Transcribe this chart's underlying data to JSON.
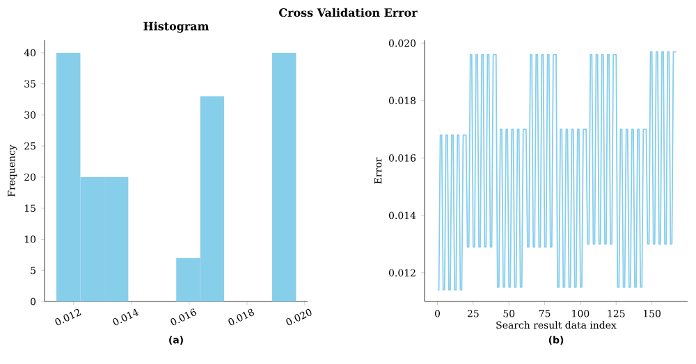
{
  "chart_data": [
    {
      "type": "histogram",
      "title": "Histogram",
      "ylabel": "Frequency",
      "color": "#87ceeb",
      "bins": [
        0.0114,
        0.01223,
        0.01306,
        0.01389,
        0.01472,
        0.01555,
        0.01638,
        0.01721,
        0.01804,
        0.01887,
        0.0197
      ],
      "values": [
        40,
        20,
        20,
        0,
        0,
        7,
        33,
        0,
        0,
        40
      ],
      "xlim": [
        0.01099,
        0.0201
      ],
      "xticks": [
        0.012,
        0.014,
        0.016,
        0.018,
        {
          "value": 0.02,
          "label": "0.020"
        }
      ],
      "ylim": [
        0,
        42
      ],
      "yticks": [
        0,
        5,
        10,
        15,
        20,
        25,
        30,
        35,
        40
      ],
      "annotations": [
        "Cross Validation Error",
        "(a)"
      ]
    },
    {
      "type": "line",
      "xlabel": "Search result data index",
      "ylabel": "Error",
      "color": "#87ceeb",
      "line_style": "solid",
      "x": [
        0,
        1,
        2,
        3,
        4,
        5,
        6,
        7,
        8,
        9,
        10,
        11,
        12,
        13,
        14,
        15,
        16,
        17,
        18,
        19,
        20,
        21,
        22,
        23,
        24,
        25,
        26,
        27,
        28,
        29,
        30,
        31,
        32,
        33,
        34,
        35,
        36,
        37,
        38,
        39,
        40,
        41,
        42,
        43,
        44,
        45,
        46,
        47,
        48,
        49,
        50,
        51,
        52,
        53,
        54,
        55,
        56,
        57,
        58,
        59,
        60,
        61,
        62,
        63,
        64,
        65,
        66,
        67,
        68,
        69,
        70,
        71,
        72,
        73,
        74,
        75,
        76,
        77,
        78,
        79,
        80,
        81,
        82,
        83,
        84,
        85,
        86,
        87,
        88,
        89,
        90,
        91,
        92,
        93,
        94,
        95,
        96,
        97,
        98,
        99,
        100,
        101,
        102,
        103,
        104,
        105,
        106,
        107,
        108,
        109,
        110,
        111,
        112,
        113,
        114,
        115,
        116,
        117,
        118,
        119,
        120,
        121,
        122,
        123,
        124,
        125,
        126,
        127,
        128,
        129,
        130,
        131,
        132,
        133,
        134,
        135,
        136,
        137,
        138,
        139,
        140,
        141,
        142,
        143,
        144,
        145,
        146,
        147,
        148,
        149,
        150,
        151,
        152,
        153,
        154,
        155,
        156,
        157,
        158,
        159,
        160,
        161,
        162,
        163,
        164,
        165,
        166,
        167
      ],
      "values": [
        0.0114,
        0.0114,
        0.0168,
        0.0168,
        0.0114,
        0.0114,
        0.0168,
        0.0168,
        0.0114,
        0.0114,
        0.0168,
        0.0168,
        0.0114,
        0.0114,
        0.0168,
        0.0168,
        0.0114,
        0.0114,
        0.0168,
        0.0168,
        0.0168,
        0.0129,
        0.0129,
        0.0196,
        0.0196,
        0.0129,
        0.0129,
        0.0196,
        0.0196,
        0.0129,
        0.0129,
        0.0196,
        0.0196,
        0.0129,
        0.0129,
        0.0196,
        0.0196,
        0.0129,
        0.0129,
        0.0196,
        0.0196,
        0.0196,
        0.0115,
        0.0115,
        0.017,
        0.017,
        0.0115,
        0.0115,
        0.017,
        0.017,
        0.0115,
        0.0115,
        0.017,
        0.017,
        0.0115,
        0.0115,
        0.017,
        0.017,
        0.0115,
        0.0115,
        0.017,
        0.017,
        0.017,
        0.0129,
        0.0129,
        0.0196,
        0.0196,
        0.0129,
        0.0129,
        0.0196,
        0.0196,
        0.0129,
        0.0129,
        0.0196,
        0.0196,
        0.0129,
        0.0129,
        0.0196,
        0.0196,
        0.0129,
        0.0129,
        0.0196,
        0.0196,
        0.0196,
        0.0115,
        0.0115,
        0.017,
        0.017,
        0.0115,
        0.0115,
        0.017,
        0.017,
        0.0115,
        0.0115,
        0.017,
        0.017,
        0.0115,
        0.0115,
        0.017,
        0.017,
        0.0115,
        0.0115,
        0.017,
        0.017,
        0.017,
        0.013,
        0.013,
        0.0196,
        0.0196,
        0.013,
        0.013,
        0.0196,
        0.0196,
        0.013,
        0.013,
        0.0196,
        0.0196,
        0.013,
        0.013,
        0.0196,
        0.0196,
        0.013,
        0.013,
        0.0196,
        0.0196,
        0.0196,
        0.0115,
        0.0115,
        0.017,
        0.017,
        0.0115,
        0.0115,
        0.017,
        0.017,
        0.0115,
        0.0115,
        0.017,
        0.017,
        0.0115,
        0.0115,
        0.017,
        0.017,
        0.0115,
        0.0115,
        0.017,
        0.017,
        0.017,
        0.013,
        0.013,
        0.0197,
        0.0197,
        0.013,
        0.013,
        0.0197,
        0.0197,
        0.013,
        0.013,
        0.0197,
        0.0197,
        0.013,
        0.013,
        0.0197,
        0.0197,
        0.013,
        0.013,
        0.0197,
        0.0197,
        0.0197
      ],
      "xlim": [
        -9,
        175
      ],
      "xticks": [
        0,
        25,
        50,
        75,
        100,
        125,
        150
      ],
      "ylim": [
        0.011,
        0.0201
      ],
      "yticks": [
        0.012,
        0.014,
        0.016,
        0.018,
        {
          "value": 0.02,
          "label": "0.020"
        }
      ],
      "annotations": [
        "(b)"
      ]
    }
  ]
}
